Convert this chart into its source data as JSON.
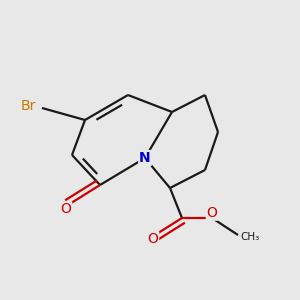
{
  "bg_color": "#e8e8e8",
  "bond_color": "#1a1a1a",
  "N_color": "#0000cc",
  "O_color": "#cc0000",
  "Br_color": "#cc7700",
  "line_width": 1.6,
  "dbo": 0.055,
  "figsize": [
    3.0,
    3.0
  ],
  "dpi": 100,
  "xlim": [
    0.0,
    3.0
  ],
  "ylim": [
    0.0,
    3.0
  ]
}
